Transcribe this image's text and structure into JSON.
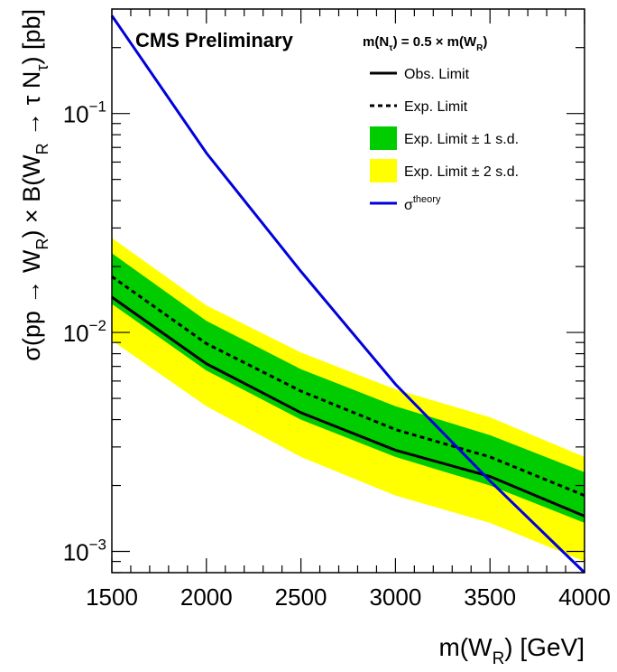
{
  "chart_data": {
    "type": "line",
    "title": "CMS Preliminary",
    "subtitle": "m(N_τ) = 0.5 × m(W_R)",
    "xlabel": "m(W_R) [GeV]",
    "ylabel": "σ(pp → W_R) × B(W_R → τ N_τ) [pb]",
    "xlim": [
      1500,
      4000
    ],
    "ylim": [
      0.0008,
      0.3
    ],
    "y_scale": "log",
    "x_ticks": [
      {
        "value": 1500,
        "label": "1500"
      },
      {
        "value": 2000,
        "label": "2000"
      },
      {
        "value": 2500,
        "label": "2500"
      },
      {
        "value": 3000,
        "label": "3000"
      },
      {
        "value": 3500,
        "label": "3500"
      },
      {
        "value": 4000,
        "label": "4000"
      }
    ],
    "y_ticks": [
      {
        "value": 0.001,
        "base": "10",
        "exp": "−3"
      },
      {
        "value": 0.01,
        "base": "10",
        "exp": "−2"
      },
      {
        "value": 0.1,
        "base": "10",
        "exp": "−1"
      }
    ],
    "grid": false,
    "legend_position": "top-right",
    "x": [
      1500,
      2000,
      2500,
      3000,
      3500,
      4000
    ],
    "obs_limit": [
      0.0145,
      0.0072,
      0.0043,
      0.0029,
      0.0022,
      0.00145
    ],
    "exp_limit": [
      0.018,
      0.0089,
      0.0054,
      0.0036,
      0.0027,
      0.0018
    ],
    "band_1sd_lo": [
      0.0135,
      0.0067,
      0.004,
      0.0027,
      0.002,
      0.00135
    ],
    "band_1sd_hi": [
      0.023,
      0.0113,
      0.0068,
      0.0046,
      0.0034,
      0.0023
    ],
    "band_2sd_lo": [
      0.0092,
      0.0046,
      0.0027,
      0.0018,
      0.00135,
      0.0009
    ],
    "band_2sd_hi": [
      0.027,
      0.0133,
      0.0081,
      0.0055,
      0.0041,
      0.0027
    ],
    "theory": {
      "x": [
        1500,
        2000,
        2500,
        3000,
        3500,
        4000
      ],
      "y": [
        0.28,
        0.066,
        0.019,
        0.0058,
        0.0021,
        0.0008
      ]
    },
    "colors": {
      "band_1sd": "#00cc00",
      "band_2sd": "#ffff00",
      "theory": "#0000dd",
      "lines": "#000000"
    },
    "legend": {
      "header": {
        "main": "m(N",
        "sub1": "τ",
        "mid": ") = 0.5 × m(W",
        "sub2": "R",
        "end": ")"
      },
      "obs": "Obs. Limit",
      "exp": "Exp. Limit",
      "band1": "Exp. Limit ± 1 s.d.",
      "band2": "Exp. Limit ± 2 s.d.",
      "theory_base": "σ",
      "theory_sup": "theory"
    },
    "axis_text": {
      "x_main": "m(W",
      "x_sub": "R",
      "x_end": ") [GeV]",
      "y_a": "σ(pp → W",
      "y_b": "R",
      "y_c": ") × B(W",
      "y_d": "R",
      "y_e": " → τ N",
      "y_f": "τ",
      "y_g": ") [pb]"
    }
  }
}
